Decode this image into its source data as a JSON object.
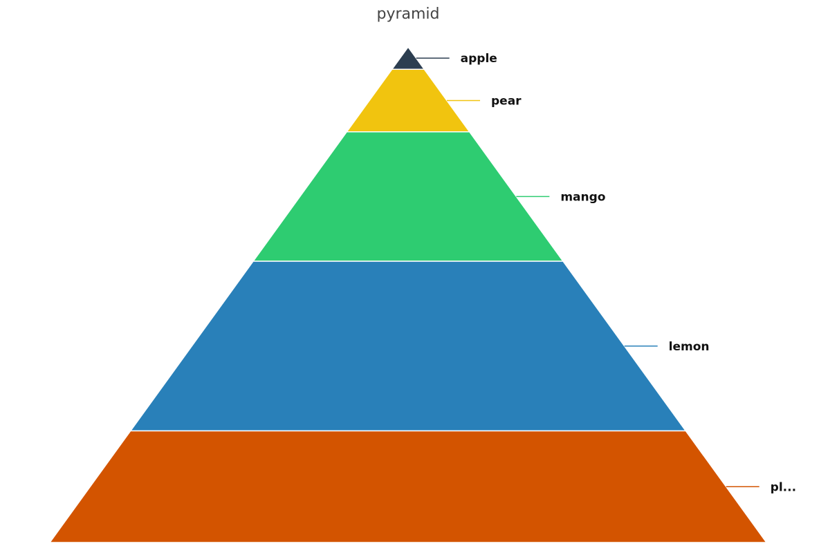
{
  "chart_data": {
    "type": "pyramid",
    "title": "pyramid",
    "categories": [
      "apple",
      "pear",
      "mango",
      "lemon",
      "pl..."
    ],
    "values": [
      5,
      14,
      29,
      38,
      25
    ],
    "colors": [
      "#2c3e50",
      "#f1c40f",
      "#2ecc71",
      "#2980b9",
      "#d35400"
    ],
    "label_position": "right",
    "legend": "none",
    "grid": false
  }
}
